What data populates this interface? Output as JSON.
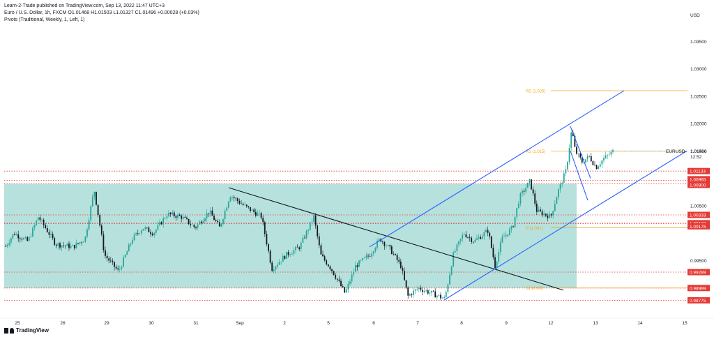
{
  "header": {
    "publish_line": "Learn-2-Trade published on TradingView.com, Sep 13, 2022 11:47 UTC+3",
    "symbol_line": "Euro / U.S. Dollar, 1h, FXCM  O1.01468  H1.01503  L1.01327  C1.01496  +0.00028 (+0.03%)",
    "indicator_line": "Pivots (Traditional, Weekly, 1, Left, 1)"
  },
  "footer": {
    "brand": "TradingView"
  },
  "colors": {
    "up": "#26a69a",
    "down": "#131722",
    "pivot": "#f5a623",
    "red_level": "#e53935",
    "channel": "#2962ff",
    "range_box": "#b2dfdb"
  },
  "chart_data": {
    "type": "candlestick",
    "symbol": "EURUSD",
    "currency": "USD",
    "last_price": "1.01496",
    "countdown": "12:52",
    "y_ticks": [
      "1.03500",
      "1.03000",
      "1.02500",
      "1.02000",
      "1.01500",
      "1.01000",
      "1.00500",
      "0.99500",
      "0.99000"
    ],
    "x_ticks": [
      "25",
      "26",
      "29",
      "30",
      "31",
      "Sep",
      "2",
      "5",
      "6",
      "7",
      "8",
      "9",
      "12",
      "13",
      "14",
      "15"
    ],
    "ylim": [
      0.9865,
      1.0375
    ],
    "horizontal_levels": [
      {
        "label": "1.01133",
        "value": 1.01133
      },
      {
        "label": "1.00965",
        "value": 1.00965
      },
      {
        "label": "1.00900",
        "value": 1.009
      },
      {
        "label": "1.00333",
        "value": 1.00333
      },
      {
        "label": "1.00182",
        "value": 1.00182
      },
      {
        "label": "1.00176",
        "value": 1.00176
      },
      {
        "label": "0.99289",
        "value": 0.99289
      },
      {
        "label": "0.98999",
        "value": 0.98999
      },
      {
        "label": "0.98775",
        "value": 0.98775
      }
    ],
    "pivots": [
      {
        "label": "R2 (1.026)",
        "value": 1.026
      },
      {
        "label": "R1 (1.015)",
        "value": 1.015
      },
      {
        "label": "P (1.001)",
        "value": 1.001
      },
      {
        "label": "S1 (0.99)",
        "value": 0.99
      }
    ],
    "range_box": {
      "top": 1.009,
      "bottom": 0.99
    },
    "price_path": [
      [
        0,
        0.996
      ],
      [
        20,
        1.0
      ],
      [
        40,
        0.9985
      ],
      [
        55,
        1.003
      ],
      [
        80,
        0.998
      ],
      [
        105,
        0.9975
      ],
      [
        122,
        0.999
      ],
      [
        135,
        1.008
      ],
      [
        150,
        0.996
      ],
      [
        170,
        0.993
      ],
      [
        190,
        0.999
      ],
      [
        205,
        1.001
      ],
      [
        220,
        1.0
      ],
      [
        240,
        1.0035
      ],
      [
        260,
        1.003
      ],
      [
        280,
        1.001
      ],
      [
        300,
        1.004
      ],
      [
        315,
        1.001
      ],
      [
        330,
        1.007
      ],
      [
        350,
        1.005
      ],
      [
        375,
        1.003
      ],
      [
        390,
        0.9935
      ],
      [
        410,
        0.996
      ],
      [
        430,
        0.9975
      ],
      [
        450,
        1.003
      ],
      [
        460,
        0.996
      ],
      [
        475,
        0.9935
      ],
      [
        495,
        0.989
      ],
      [
        510,
        0.994
      ],
      [
        530,
        0.996
      ],
      [
        545,
        0.999
      ],
      [
        560,
        0.997
      ],
      [
        575,
        0.994
      ],
      [
        585,
        0.9885
      ],
      [
        600,
        0.99
      ],
      [
        620,
        0.989
      ],
      [
        638,
        0.988
      ],
      [
        650,
        0.996
      ],
      [
        665,
        1.0
      ],
      [
        680,
        0.9985
      ],
      [
        700,
        1.0005
      ],
      [
        710,
        0.994
      ],
      [
        720,
        0.999
      ],
      [
        735,
        1.001
      ],
      [
        745,
        1.0065
      ],
      [
        760,
        1.0095
      ],
      [
        770,
        1.004
      ],
      [
        790,
        1.003
      ],
      [
        800,
        1.0075
      ],
      [
        812,
        1.0115
      ],
      [
        820,
        1.019
      ],
      [
        825,
        1.015
      ],
      [
        835,
        1.013
      ],
      [
        845,
        1.014
      ],
      [
        855,
        1.012
      ],
      [
        865,
        1.0135
      ],
      [
        880,
        1.015
      ]
    ]
  }
}
